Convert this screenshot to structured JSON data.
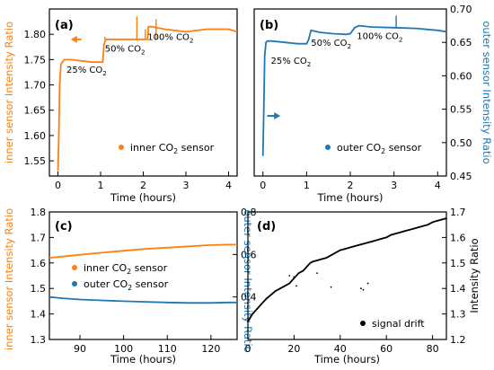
{
  "colors": {
    "orange": "#ff7f0e",
    "blue": "#1f77b4",
    "black": "#000000"
  },
  "chart_data": [
    {
      "panel": "(a)",
      "type": "line",
      "xlabel": "Time (hours)",
      "ylabel": "inner sensor Intensity Ratio",
      "xlim": [
        -0.2,
        4.2
      ],
      "ylim": [
        1.52,
        1.85
      ],
      "xticks": [
        0,
        1,
        2,
        3,
        4
      ],
      "yticks": [
        1.55,
        1.6,
        1.65,
        1.7,
        1.75,
        1.8
      ],
      "ytick_labels": [
        "1.55",
        "1.60",
        "1.65",
        "1.70",
        "1.75",
        "1.80"
      ],
      "series": [
        {
          "name": "inner CO2 sensor",
          "color": "#ff7f0e",
          "x": [
            0.0,
            0.02,
            0.04,
            0.07,
            0.1,
            0.15,
            0.3,
            0.5,
            0.8,
            1.05,
            1.08,
            1.12,
            1.2,
            1.5,
            1.8,
            2.0,
            2.1,
            2.12,
            2.2,
            2.5,
            3.0,
            3.5,
            4.0,
            4.2
          ],
          "y": [
            1.53,
            1.6,
            1.7,
            1.74,
            1.745,
            1.75,
            1.75,
            1.748,
            1.745,
            1.745,
            1.78,
            1.79,
            1.79,
            1.79,
            1.79,
            1.79,
            1.79,
            1.815,
            1.815,
            1.81,
            1.805,
            1.81,
            1.81,
            1.805
          ]
        }
      ],
      "legend": "inner CO<sub>2</sub> sensor",
      "legend_position": "lower right",
      "annotations": [
        "25% CO<sub>2</sub>",
        "50% CO<sub>2</sub>",
        "100% CO<sub>2</sub>"
      ],
      "arrow_direction": "left"
    },
    {
      "panel": "(b)",
      "type": "line",
      "xlabel": "Time (hours)",
      "ylabel": "outer sensor Intensity Ratio",
      "xlim": [
        -0.2,
        4.2
      ],
      "ylim": [
        0.45,
        0.7
      ],
      "xticks": [
        0,
        1,
        2,
        3,
        4
      ],
      "yticks": [
        0.45,
        0.5,
        0.55,
        0.6,
        0.65,
        0.7
      ],
      "ytick_labels": [
        "0.45",
        "0.50",
        "0.55",
        "0.60",
        "0.65",
        "0.70"
      ],
      "series": [
        {
          "name": "outer CO2 sensor",
          "color": "#1f77b4",
          "x": [
            0.0,
            0.02,
            0.04,
            0.07,
            0.1,
            0.2,
            0.5,
            0.8,
            1.0,
            1.05,
            1.1,
            1.3,
            1.6,
            1.9,
            2.0,
            2.1,
            2.2,
            2.5,
            3.0,
            3.5,
            4.0,
            4.2
          ],
          "y": [
            0.48,
            0.55,
            0.63,
            0.65,
            0.652,
            0.652,
            0.65,
            0.648,
            0.648,
            0.655,
            0.668,
            0.665,
            0.663,
            0.662,
            0.663,
            0.672,
            0.675,
            0.673,
            0.672,
            0.671,
            0.668,
            0.666
          ]
        }
      ],
      "legend": "outer CO<sub>2</sub> sensor",
      "legend_position": "lower right",
      "annotations": [
        "25% CO<sub>2</sub>",
        "50% CO<sub>2</sub>",
        "100% CO<sub>2</sub>"
      ],
      "arrow_direction": "right"
    },
    {
      "panel": "(c)",
      "type": "line",
      "xlabel": "Time (hours)",
      "ylabel": "inner sensor Intensity Ratio",
      "ylabel_right": "outer sensor Intensity Ratio",
      "xlim": [
        83,
        126
      ],
      "ylim": [
        1.3,
        1.8
      ],
      "ylim_right": [
        0.2,
        0.8
      ],
      "xticks": [
        90,
        100,
        110,
        120
      ],
      "yticks": [
        1.3,
        1.4,
        1.5,
        1.6,
        1.7,
        1.8
      ],
      "ytick_labels": [
        "1.3",
        "1.4",
        "1.5",
        "1.6",
        "1.7",
        "1.8"
      ],
      "yticks_right": [
        0.4,
        0.6,
        0.8
      ],
      "ytick_labels_right": [
        "0.4",
        "0.6",
        "0.8"
      ],
      "series": [
        {
          "name": "inner CO2 sensor",
          "axis": "left",
          "color": "#ff7f0e",
          "x": [
            83,
            86,
            90,
            95,
            100,
            105,
            110,
            115,
            120,
            124,
            126
          ],
          "y": [
            1.62,
            1.625,
            1.632,
            1.64,
            1.648,
            1.655,
            1.66,
            1.665,
            1.67,
            1.672,
            1.672
          ]
        },
        {
          "name": "outer CO2 sensor",
          "axis": "right",
          "color": "#1f77b4",
          "x": [
            83,
            86,
            90,
            95,
            100,
            105,
            110,
            115,
            120,
            124,
            126
          ],
          "y": [
            0.4,
            0.394,
            0.388,
            0.384,
            0.38,
            0.377,
            0.374,
            0.372,
            0.372,
            0.374,
            0.374
          ]
        }
      ],
      "legends": [
        "inner CO<sub>2</sub> sensor",
        "outer CO<sub>2</sub> sensor"
      ],
      "legend_position": "center"
    },
    {
      "panel": "(d)",
      "type": "scatter",
      "xlabel": "Time (hours)",
      "ylabel_right": "Intensity Ratio",
      "xlim": [
        0,
        86
      ],
      "ylim": [
        1.2,
        1.7
      ],
      "xticks": [
        0,
        20,
        40,
        60,
        80
      ],
      "yticks": [
        1.2,
        1.3,
        1.4,
        1.5,
        1.6,
        1.7
      ],
      "ytick_labels": [
        "1.2",
        "1.3",
        "1.4",
        "1.5",
        "1.6",
        "1.7"
      ],
      "series": [
        {
          "name": "signal drift",
          "color": "#000000",
          "x": [
            0,
            2,
            4,
            6,
            8,
            10,
            12,
            14,
            16,
            18,
            19,
            20,
            22,
            24,
            26,
            27,
            28,
            30,
            32,
            34,
            36,
            38,
            40,
            42,
            44,
            46,
            48,
            50,
            52,
            54,
            56,
            58,
            60,
            62,
            64,
            66,
            68,
            70,
            72,
            74,
            76,
            78,
            80,
            82,
            84,
            86
          ],
          "y": [
            1.27,
            1.3,
            1.32,
            1.34,
            1.36,
            1.375,
            1.39,
            1.4,
            1.41,
            1.42,
            1.43,
            1.44,
            1.46,
            1.47,
            1.49,
            1.5,
            1.505,
            1.51,
            1.515,
            1.52,
            1.53,
            1.54,
            1.55,
            1.555,
            1.56,
            1.565,
            1.57,
            1.575,
            1.58,
            1.585,
            1.59,
            1.595,
            1.6,
            1.61,
            1.615,
            1.62,
            1.625,
            1.63,
            1.635,
            1.64,
            1.645,
            1.65,
            1.66,
            1.665,
            1.67,
            1.675
          ]
        }
      ],
      "outliers": {
        "x": [
          18,
          20,
          21,
          30,
          36,
          49,
          50,
          52
        ],
        "y": [
          1.45,
          1.445,
          1.41,
          1.46,
          1.405,
          1.4,
          1.395,
          1.42
        ]
      },
      "legend": "signal drift",
      "legend_position": "lower right"
    }
  ]
}
